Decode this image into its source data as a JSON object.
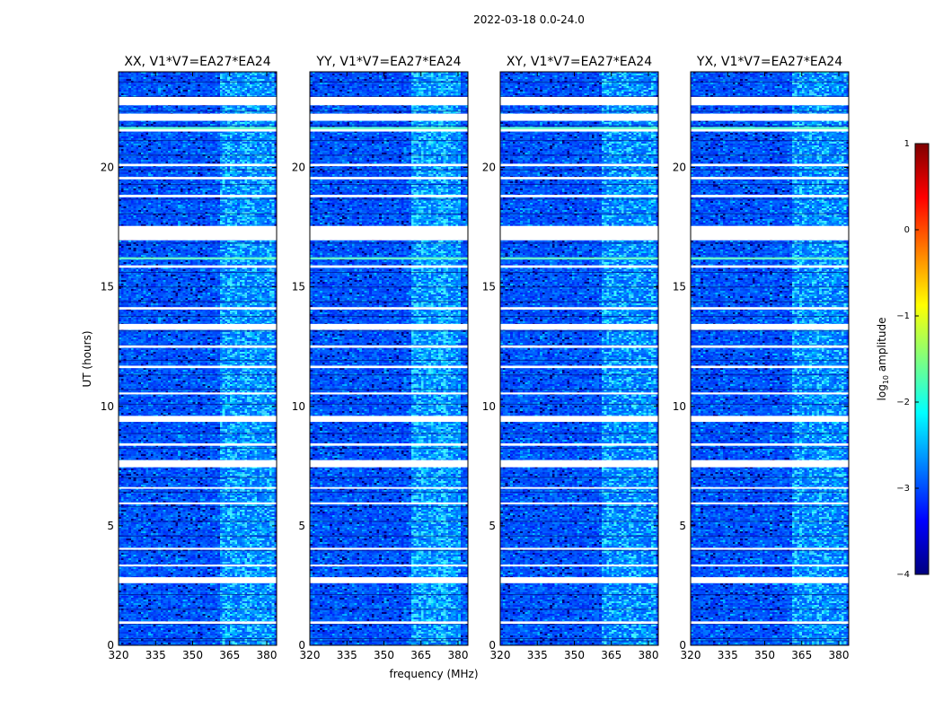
{
  "chart_data": {
    "type": "heatmap",
    "suptitle": "2022-03-18 0.0-24.0",
    "xlabel": "frequency (MHz)",
    "ylabel": "UT (hours)",
    "xlim": [
      320,
      384
    ],
    "ylim": [
      0,
      24
    ],
    "xticks": [
      320,
      335,
      350,
      365,
      380
    ],
    "yticks": [
      0,
      5,
      10,
      15,
      20
    ],
    "panels": [
      {
        "title": "XX, V1*V7=EA27*EA24",
        "polarization": "XX",
        "band_strength": 0.85
      },
      {
        "title": "YY, V1*V7=EA27*EA24",
        "polarization": "YY",
        "band_strength": 1.0
      },
      {
        "title": "XY, V1*V7=EA27*EA24",
        "polarization": "XY",
        "band_strength": 0.75
      },
      {
        "title": "YX, V1*V7=EA27*EA24",
        "polarization": "YX",
        "band_strength": 0.75
      }
    ],
    "band_mhz": {
      "XX": [
        361,
        382
      ],
      "YY": [
        361,
        380
      ],
      "XY": [
        361,
        382
      ],
      "YX": [
        361,
        382
      ]
    },
    "flagged_hours": [
      [
        2.6,
        2.85
      ],
      [
        7.45,
        7.75
      ],
      [
        9.35,
        9.6
      ],
      [
        13.2,
        13.45
      ],
      [
        16.95,
        17.55
      ],
      [
        21.95,
        22.25
      ],
      [
        22.6,
        22.95
      ],
      [
        0.9,
        1.0
      ],
      [
        3.3,
        3.38
      ],
      [
        4.0,
        4.08
      ],
      [
        5.9,
        5.98
      ],
      [
        6.55,
        6.62
      ],
      [
        8.35,
        8.45
      ],
      [
        10.5,
        10.58
      ],
      [
        11.6,
        11.7
      ],
      [
        12.45,
        12.55
      ],
      [
        14.05,
        14.15
      ],
      [
        15.8,
        15.9
      ],
      [
        18.75,
        18.85
      ],
      [
        19.5,
        19.6
      ],
      [
        20.05,
        20.15
      ],
      [
        21.5,
        21.6
      ]
    ],
    "bright_row_hours": [
      21.65,
      16.2
    ],
    "colorbar": {
      "label": "log10 amplitude",
      "label_main": "log",
      "label_sub": "10",
      "label_rest": " amplitude",
      "min": -4,
      "max": 1,
      "ticks": [
        "1",
        "0",
        "−1",
        "−2",
        "−3",
        "−4"
      ],
      "colormap": "jet",
      "stops": [
        "#00007f",
        "#0000ff",
        "#007fff",
        "#00ffff",
        "#7fff7f",
        "#ffff00",
        "#ff7f00",
        "#ff0000",
        "#7f0000"
      ]
    }
  }
}
